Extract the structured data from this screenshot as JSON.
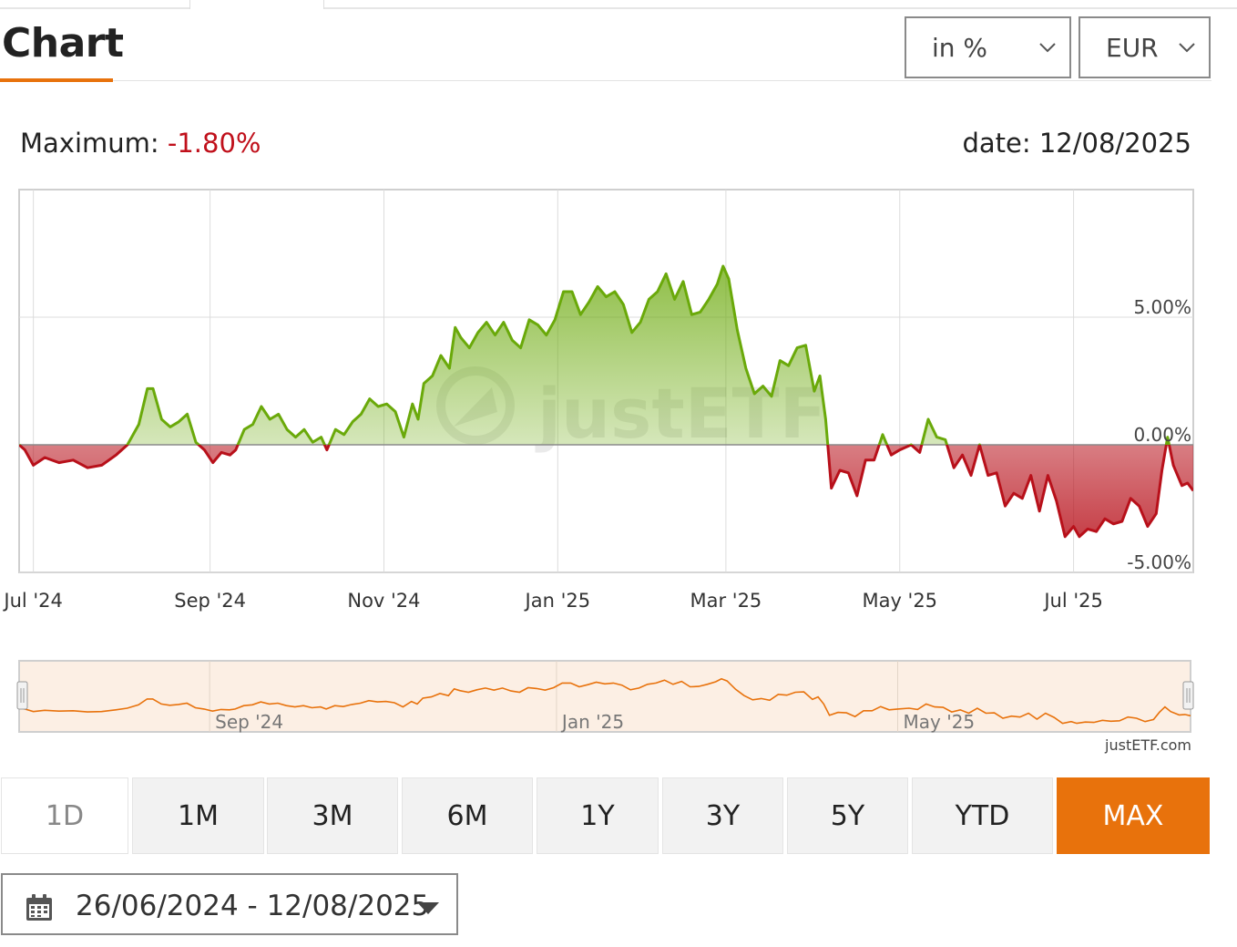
{
  "header": {
    "title": "Chart"
  },
  "controls": {
    "mode_select": "in %",
    "currency_select": "EUR"
  },
  "summary": {
    "maximum_label": "Maximum: ",
    "maximum_value": "-1.80%",
    "date_label": "date: 12/08/2025"
  },
  "credit": "justETF.com",
  "watermark": "justETF",
  "periods": [
    "1D",
    "1M",
    "3M",
    "6M",
    "1Y",
    "3Y",
    "5Y",
    "YTD",
    "MAX"
  ],
  "active_period": "MAX",
  "date_range": "26/06/2024 - 12/08/2025",
  "colors": {
    "accent": "#e8720c",
    "positive": "#6aa90a",
    "negative": "#b8101a",
    "navigator_fill": "#fcefe4",
    "grid": "#dcdcdc"
  },
  "chart_data": {
    "type": "area",
    "title": "",
    "xlabel": "",
    "ylabel": "",
    "x_range": [
      "2024-06-26",
      "2025-08-12"
    ],
    "ylim": [
      -5,
      10
    ],
    "y_ticks": [
      "5.00%",
      "0.00%",
      "-5.00%"
    ],
    "y_tick_values": [
      5,
      0,
      -5
    ],
    "x_ticks": [
      {
        "label": "Jul '24",
        "date": "2024-07-01"
      },
      {
        "label": "Sep '24",
        "date": "2024-09-01"
      },
      {
        "label": "Nov '24",
        "date": "2024-11-01"
      },
      {
        "label": "Jan '25",
        "date": "2025-01-01"
      },
      {
        "label": "Mar '25",
        "date": "2025-03-01"
      },
      {
        "label": "May '25",
        "date": "2025-05-01"
      },
      {
        "label": "Jul '25",
        "date": "2025-07-01"
      }
    ],
    "navigator_ticks": [
      {
        "label": "Sep '24",
        "date": "2024-09-01"
      },
      {
        "label": "Jan '25",
        "date": "2025-01-01"
      },
      {
        "label": "May '25",
        "date": "2025-05-01"
      }
    ],
    "series": [
      {
        "values": [
          [
            "2024-06-26",
            0.0
          ],
          [
            "2024-06-28",
            -0.2
          ],
          [
            "2024-07-01",
            -0.8
          ],
          [
            "2024-07-05",
            -0.5
          ],
          [
            "2024-07-10",
            -0.7
          ],
          [
            "2024-07-15",
            -0.6
          ],
          [
            "2024-07-20",
            -0.9
          ],
          [
            "2024-07-25",
            -0.8
          ],
          [
            "2024-07-30",
            -0.4
          ],
          [
            "2024-08-03",
            0.0
          ],
          [
            "2024-08-07",
            0.8
          ],
          [
            "2024-08-10",
            2.2
          ],
          [
            "2024-08-12",
            2.2
          ],
          [
            "2024-08-15",
            1.0
          ],
          [
            "2024-08-18",
            0.7
          ],
          [
            "2024-08-21",
            0.9
          ],
          [
            "2024-08-24",
            1.2
          ],
          [
            "2024-08-27",
            0.1
          ],
          [
            "2024-08-30",
            -0.2
          ],
          [
            "2024-09-02",
            -0.7
          ],
          [
            "2024-09-05",
            -0.3
          ],
          [
            "2024-09-08",
            -0.4
          ],
          [
            "2024-09-10",
            -0.2
          ],
          [
            "2024-09-13",
            0.6
          ],
          [
            "2024-09-16",
            0.8
          ],
          [
            "2024-09-19",
            1.5
          ],
          [
            "2024-09-22",
            1.0
          ],
          [
            "2024-09-25",
            1.2
          ],
          [
            "2024-09-28",
            0.6
          ],
          [
            "2024-10-01",
            0.3
          ],
          [
            "2024-10-04",
            0.6
          ],
          [
            "2024-10-07",
            0.1
          ],
          [
            "2024-10-10",
            0.3
          ],
          [
            "2024-10-12",
            -0.2
          ],
          [
            "2024-10-15",
            0.6
          ],
          [
            "2024-10-18",
            0.4
          ],
          [
            "2024-10-21",
            0.9
          ],
          [
            "2024-10-24",
            1.2
          ],
          [
            "2024-10-27",
            1.8
          ],
          [
            "2024-10-30",
            1.5
          ],
          [
            "2024-11-02",
            1.6
          ],
          [
            "2024-11-05",
            1.3
          ],
          [
            "2024-11-08",
            0.3
          ],
          [
            "2024-11-11",
            1.6
          ],
          [
            "2024-11-13",
            1.0
          ],
          [
            "2024-11-15",
            2.4
          ],
          [
            "2024-11-18",
            2.7
          ],
          [
            "2024-11-21",
            3.5
          ],
          [
            "2024-11-24",
            3.0
          ],
          [
            "2024-11-26",
            4.6
          ],
          [
            "2024-11-28",
            4.2
          ],
          [
            "2024-12-01",
            3.8
          ],
          [
            "2024-12-04",
            4.4
          ],
          [
            "2024-12-07",
            4.8
          ],
          [
            "2024-12-10",
            4.3
          ],
          [
            "2024-12-13",
            4.8
          ],
          [
            "2024-12-16",
            4.1
          ],
          [
            "2024-12-19",
            3.8
          ],
          [
            "2024-12-22",
            4.9
          ],
          [
            "2024-12-25",
            4.7
          ],
          [
            "2024-12-28",
            4.3
          ],
          [
            "2024-12-31",
            4.9
          ],
          [
            "2025-01-03",
            6.0
          ],
          [
            "2025-01-06",
            6.0
          ],
          [
            "2025-01-09",
            5.1
          ],
          [
            "2025-01-12",
            5.6
          ],
          [
            "2025-01-15",
            6.2
          ],
          [
            "2025-01-18",
            5.8
          ],
          [
            "2025-01-21",
            6.0
          ],
          [
            "2025-01-24",
            5.5
          ],
          [
            "2025-01-27",
            4.4
          ],
          [
            "2025-01-30",
            4.8
          ],
          [
            "2025-02-02",
            5.7
          ],
          [
            "2025-02-05",
            6.0
          ],
          [
            "2025-02-08",
            6.7
          ],
          [
            "2025-02-11",
            5.7
          ],
          [
            "2025-02-14",
            6.4
          ],
          [
            "2025-02-17",
            5.1
          ],
          [
            "2025-02-20",
            5.2
          ],
          [
            "2025-02-23",
            5.7
          ],
          [
            "2025-02-26",
            6.3
          ],
          [
            "2025-02-28",
            7.0
          ],
          [
            "2025-03-02",
            6.5
          ],
          [
            "2025-03-05",
            4.5
          ],
          [
            "2025-03-08",
            3.0
          ],
          [
            "2025-03-11",
            2.0
          ],
          [
            "2025-03-14",
            2.3
          ],
          [
            "2025-03-17",
            1.9
          ],
          [
            "2025-03-20",
            3.3
          ],
          [
            "2025-03-23",
            3.1
          ],
          [
            "2025-03-26",
            3.8
          ],
          [
            "2025-03-29",
            3.9
          ],
          [
            "2025-04-01",
            2.1
          ],
          [
            "2025-04-03",
            2.7
          ],
          [
            "2025-04-05",
            1.0
          ],
          [
            "2025-04-07",
            -1.7
          ],
          [
            "2025-04-10",
            -1.0
          ],
          [
            "2025-04-13",
            -1.1
          ],
          [
            "2025-04-16",
            -2.0
          ],
          [
            "2025-04-19",
            -0.6
          ],
          [
            "2025-04-22",
            -0.6
          ],
          [
            "2025-04-25",
            0.4
          ],
          [
            "2025-04-28",
            -0.4
          ],
          [
            "2025-05-01",
            -0.2
          ],
          [
            "2025-05-05",
            0.0
          ],
          [
            "2025-05-08",
            -0.3
          ],
          [
            "2025-05-11",
            1.0
          ],
          [
            "2025-05-14",
            0.3
          ],
          [
            "2025-05-17",
            0.2
          ],
          [
            "2025-05-20",
            -0.9
          ],
          [
            "2025-05-23",
            -0.4
          ],
          [
            "2025-05-26",
            -1.2
          ],
          [
            "2025-05-29",
            0.0
          ],
          [
            "2025-06-01",
            -1.2
          ],
          [
            "2025-06-04",
            -1.1
          ],
          [
            "2025-06-07",
            -2.4
          ],
          [
            "2025-06-10",
            -1.9
          ],
          [
            "2025-06-13",
            -2.1
          ],
          [
            "2025-06-16",
            -1.2
          ],
          [
            "2025-06-19",
            -2.6
          ],
          [
            "2025-06-22",
            -1.2
          ],
          [
            "2025-06-25",
            -2.2
          ],
          [
            "2025-06-28",
            -3.6
          ],
          [
            "2025-07-01",
            -3.2
          ],
          [
            "2025-07-03",
            -3.6
          ],
          [
            "2025-07-06",
            -3.3
          ],
          [
            "2025-07-09",
            -3.4
          ],
          [
            "2025-07-12",
            -2.9
          ],
          [
            "2025-07-15",
            -3.1
          ],
          [
            "2025-07-18",
            -3.0
          ],
          [
            "2025-07-21",
            -2.1
          ],
          [
            "2025-07-24",
            -2.4
          ],
          [
            "2025-07-27",
            -3.2
          ],
          [
            "2025-07-30",
            -2.7
          ],
          [
            "2025-08-01",
            -1.0
          ],
          [
            "2025-08-03",
            0.3
          ],
          [
            "2025-08-05",
            -0.8
          ],
          [
            "2025-08-08",
            -1.6
          ],
          [
            "2025-08-10",
            -1.5
          ],
          [
            "2025-08-12",
            -1.8
          ]
        ]
      }
    ],
    "grid": true
  }
}
